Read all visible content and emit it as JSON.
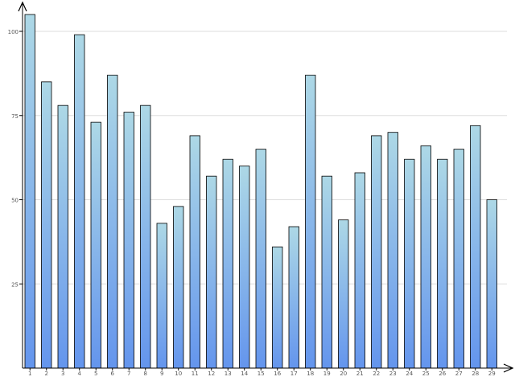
{
  "chart_data": {
    "type": "bar",
    "categories": [
      "1",
      "2",
      "3",
      "4",
      "5",
      "6",
      "7",
      "8",
      "9",
      "10",
      "11",
      "12",
      "13",
      "14",
      "15",
      "16",
      "17",
      "18",
      "19",
      "20",
      "21",
      "22",
      "23",
      "24",
      "25",
      "26",
      "27",
      "28",
      "29"
    ],
    "values": [
      105,
      85,
      78,
      99,
      73,
      87,
      76,
      78,
      43,
      48,
      69,
      57,
      62,
      60,
      65,
      36,
      42,
      87,
      57,
      44,
      58,
      69,
      70,
      62,
      66,
      62,
      65,
      72,
      50
    ],
    "y_ticks": [
      25,
      50,
      75,
      100
    ],
    "ylim": [
      0,
      105
    ],
    "grid": true,
    "title": "",
    "xlabel": "",
    "ylabel": "",
    "colors": {
      "bar_top": "#add8e6",
      "bar_bottom": "#6495ed",
      "bar_stroke": "#000000",
      "grid": "#dddddd",
      "axis": "#000000",
      "tick_text": "#555555"
    }
  }
}
